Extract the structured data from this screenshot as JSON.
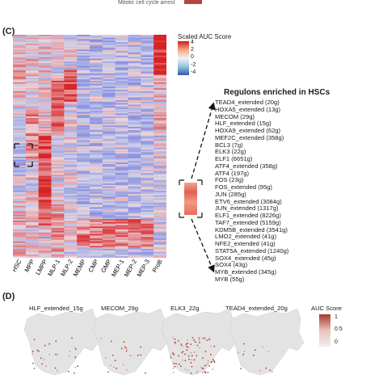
{
  "top_strip": {
    "label": "Mitotic cell cycle arrest"
  },
  "panel_c": {
    "letter": "(C)",
    "legend": {
      "title": "Scaled AUC Score",
      "ticks": [
        "4",
        "2",
        "0",
        "-2",
        "-4"
      ],
      "colors": [
        "#d7191c",
        "#f4a582",
        "#f2f2f2",
        "#92c5de",
        "#2c5ca8"
      ]
    },
    "column_labels": [
      "HSC",
      "MPP",
      "LMPP",
      "MLP-1",
      "MLP-2",
      "MEMP",
      "CMP",
      "GMP",
      "MEP-1",
      "MEP-2",
      "MEP-3",
      "ProB"
    ],
    "heatmap_rows": 150,
    "regulon_title": "Regulons enriched in HSCs",
    "regulons": [
      "TEAD4_extended (20g)",
      "HOXA5_extended (13g)",
      "MECOM (29g)",
      "HLF_extended (15g)",
      "HOXA9_extended (62g)",
      "MEF2C_extended (358g)",
      "BCL3 (7g)",
      "ELK3 (22g)",
      "ELF1 (6651g)",
      "ATF4_extended (358g)",
      "ATF4 (197g)",
      "FOS (23g)",
      "FOS_extended (95g)",
      "JUN (285g)",
      "ETV6_extended (3084g)",
      "JUN_extended (1317g)",
      "ELF1_extended (8226g)",
      "TAF7_extended (5159g)",
      "KDM5B_extended (3541g)",
      "LMO2_extended (41g)",
      "NFE2_extended (41g)",
      "STAT5A_extended (1240g)",
      "SOX4_extended (45g)",
      "SOX4 (43g)",
      "MYB_extended (345g)",
      "MYB (55g)"
    ]
  },
  "panel_d": {
    "letter": "(D)",
    "umaps": [
      {
        "title": "HLF_extended_15g",
        "density": 0.18
      },
      {
        "title": "MECOM_29g",
        "density": 0.14
      },
      {
        "title": "ELK3_22g",
        "density": 0.55
      },
      {
        "title": "TEAD4_extended_20g",
        "density": 0.08
      }
    ],
    "auc_legend": {
      "title": "AUC Score",
      "ticks": [
        "1",
        "0.5",
        "0"
      ],
      "colors": [
        "#a6392f",
        "#e8c3bb",
        "#efefef"
      ]
    }
  }
}
